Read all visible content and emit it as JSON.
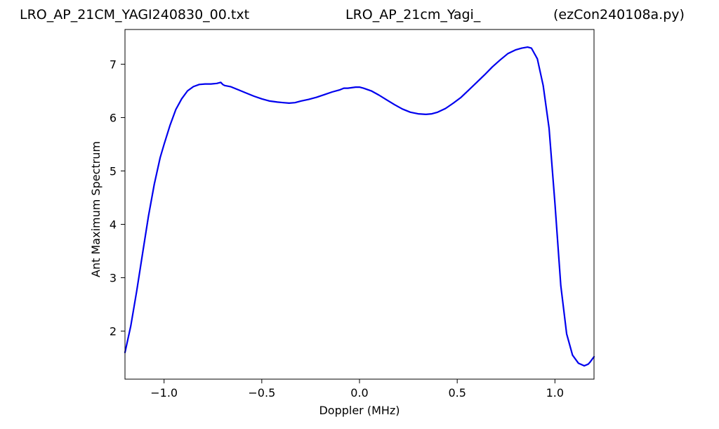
{
  "header": {
    "title_left": "LRO_AP_21CM_YAGI240830_00.txt",
    "title_center": "LRO_AP_21cm_Yagi_",
    "title_right": "(ezCon240108a.py)"
  },
  "chart_data": {
    "type": "line",
    "title": "",
    "xlabel": "Doppler (MHz)",
    "ylabel": "Ant Maximum Spectrum",
    "xlim": [
      -1.2,
      1.2
    ],
    "ylim": [
      1.1,
      7.65
    ],
    "xticks": [
      -1.0,
      -0.5,
      0.0,
      0.5,
      1.0
    ],
    "xtick_labels": [
      "−1.0",
      "−0.5",
      "0.0",
      "0.5",
      "1.0"
    ],
    "yticks": [
      2,
      3,
      4,
      5,
      6,
      7
    ],
    "ytick_labels": [
      "2",
      "3",
      "4",
      "5",
      "6",
      "7"
    ],
    "grid": false,
    "line_color": "#0000ee",
    "series": [
      {
        "x": [
          -1.2,
          -1.17,
          -1.14,
          -1.11,
          -1.08,
          -1.05,
          -1.02,
          -1.0,
          -0.97,
          -0.94,
          -0.91,
          -0.88,
          -0.85,
          -0.82,
          -0.79,
          -0.76,
          -0.73,
          -0.71,
          -0.7,
          -0.69,
          -0.66,
          -0.62,
          -0.58,
          -0.54,
          -0.5,
          -0.46,
          -0.42,
          -0.39,
          -0.36,
          -0.33,
          -0.3,
          -0.26,
          -0.22,
          -0.18,
          -0.14,
          -0.1,
          -0.08,
          -0.06,
          -0.04,
          -0.02,
          0.0,
          0.02,
          0.06,
          0.1,
          0.14,
          0.18,
          0.22,
          0.26,
          0.3,
          0.34,
          0.37,
          0.4,
          0.44,
          0.48,
          0.52,
          0.56,
          0.6,
          0.64,
          0.68,
          0.72,
          0.76,
          0.8,
          0.83,
          0.86,
          0.88,
          0.91,
          0.94,
          0.97,
          1.0,
          1.03,
          1.06,
          1.09,
          1.12,
          1.15,
          1.17,
          1.18,
          1.19,
          1.2
        ],
        "y": [
          1.6,
          2.1,
          2.75,
          3.45,
          4.15,
          4.75,
          5.25,
          5.5,
          5.85,
          6.15,
          6.35,
          6.5,
          6.58,
          6.62,
          6.63,
          6.63,
          6.64,
          6.66,
          6.62,
          6.6,
          6.58,
          6.52,
          6.46,
          6.4,
          6.35,
          6.31,
          6.29,
          6.28,
          6.27,
          6.28,
          6.31,
          6.34,
          6.38,
          6.43,
          6.48,
          6.52,
          6.55,
          6.55,
          6.56,
          6.57,
          6.57,
          6.55,
          6.5,
          6.42,
          6.33,
          6.24,
          6.16,
          6.1,
          6.07,
          6.06,
          6.07,
          6.1,
          6.17,
          6.27,
          6.38,
          6.52,
          6.66,
          6.8,
          6.95,
          7.08,
          7.2,
          7.27,
          7.3,
          7.32,
          7.3,
          7.1,
          6.6,
          5.8,
          4.4,
          2.85,
          1.95,
          1.55,
          1.4,
          1.35,
          1.38,
          1.42,
          1.47,
          1.52
        ]
      }
    ]
  }
}
